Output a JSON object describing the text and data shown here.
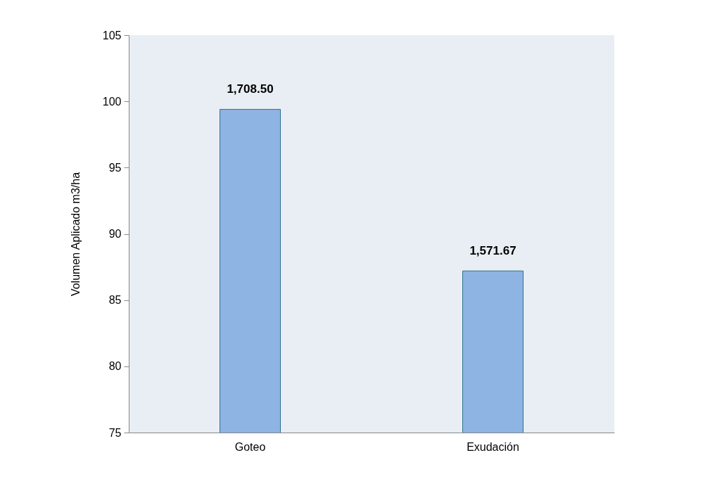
{
  "chart_data": {
    "type": "bar",
    "ylabel": "Volumen Aplicado  m3/ha",
    "categories": [
      "Goteo",
      "Exudación"
    ],
    "values": [
      99.4,
      87.2
    ],
    "annotations": [
      {
        "text": "1,708.50",
        "x": "Goteo",
        "y": 99.4
      },
      {
        "text": "1,571.67",
        "x": "Exudación",
        "y": 87.2
      }
    ],
    "color": "#8eb4e3",
    "ylim": [
      75,
      105
    ],
    "yticks": [
      75,
      80,
      85,
      90,
      95,
      100,
      105
    ]
  }
}
